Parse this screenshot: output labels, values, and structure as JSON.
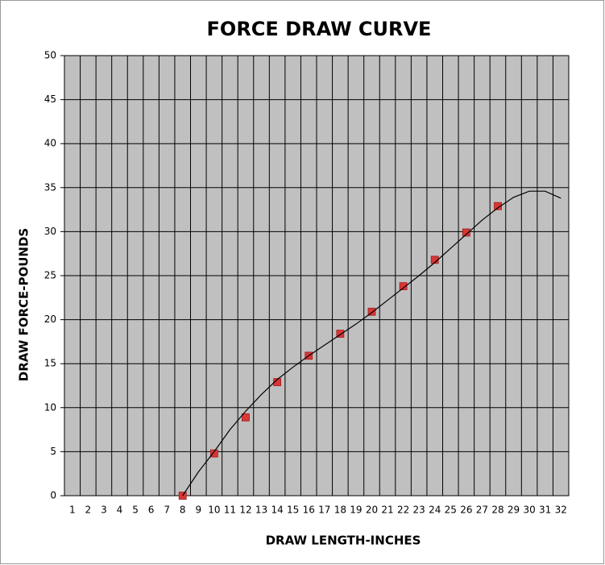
{
  "chart_data": {
    "type": "line",
    "title": "FORCE DRAW CURVE",
    "x_label": "DRAW LENGTH-INCHES",
    "y_label": "DRAW FORCE-POUNDS",
    "categories": [
      "1",
      "2",
      "3",
      "4",
      "5",
      "6",
      "7",
      "8",
      "9",
      "10",
      "11",
      "12",
      "13",
      "14",
      "15",
      "16",
      "17",
      "18",
      "19",
      "20",
      "21",
      "22",
      "23",
      "24",
      "25",
      "26",
      "27",
      "28",
      "29",
      "30",
      "31",
      "32"
    ],
    "series": [
      {
        "color": "#d93636",
        "marker": "square",
        "line": false,
        "values": [
          null,
          null,
          null,
          null,
          null,
          null,
          null,
          0,
          null,
          4.8,
          null,
          8.9,
          null,
          12.9,
          null,
          15.9,
          null,
          18.4,
          null,
          20.9,
          null,
          23.8,
          null,
          26.8,
          null,
          29.9,
          null,
          32.9,
          null,
          null,
          null,
          null
        ]
      },
      {
        "color": "#000000",
        "marker": "none",
        "line": true,
        "values": [
          null,
          null,
          null,
          null,
          null,
          null,
          null,
          0,
          2.7,
          5,
          7.5,
          9.6,
          11.5,
          13.2,
          14.6,
          15.9,
          17.1,
          18.3,
          19.5,
          20.8,
          22.2,
          23.6,
          25,
          26.5,
          28.1,
          29.7,
          31.3,
          32.7,
          33.9,
          34.6,
          34.6,
          33.8
        ]
      }
    ],
    "ylim": [
      0,
      50
    ],
    "yticks": [
      0,
      5,
      10,
      15,
      20,
      25,
      30,
      35,
      40,
      45,
      50
    ],
    "grid": true,
    "plot_background": "#c0c0c0"
  }
}
